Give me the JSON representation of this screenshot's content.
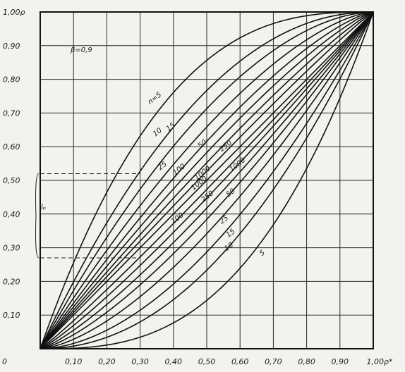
{
  "chart_data": {
    "type": "line",
    "title": "β=0,9",
    "xlabel": "ρ*",
    "ylabel": "ρ",
    "xlim": [
      0,
      1
    ],
    "ylim": [
      0,
      1
    ],
    "grid": true,
    "x_ticks": [
      "0",
      "0,10",
      "0,20",
      "0,30",
      "0,40",
      "0,50",
      "0,60",
      "0,70",
      "0,80",
      "0,90",
      "1,00ρ*"
    ],
    "y_ticks": [
      "0,10",
      "0,20",
      "0,30",
      "0,40",
      "0,50",
      "0,60",
      "0,70",
      "0,80",
      "0,90",
      "1,00ρ"
    ],
    "interval_label": "lₚ",
    "interval_bounds": [
      0.27,
      0.52
    ],
    "series": [
      {
        "name": "n=5",
        "upper_shape": 2.8,
        "lower_shape": 2.8
      },
      {
        "name": "10",
        "upper_shape": 2.1,
        "lower_shape": 2.1
      },
      {
        "name": "15",
        "upper_shape": 1.8,
        "lower_shape": 1.8
      },
      {
        "name": "25",
        "upper_shape": 1.55,
        "lower_shape": 1.55
      },
      {
        "name": "50",
        "upper_shape": 1.38,
        "lower_shape": 1.38
      },
      {
        "name": "100",
        "upper_shape": 1.26,
        "lower_shape": 1.26
      },
      {
        "name": "250",
        "upper_shape": 1.16,
        "lower_shape": 1.16
      },
      {
        "name": "1000",
        "upper_shape": 1.08,
        "lower_shape": 1.08
      }
    ],
    "curve_labels_upper": [
      {
        "text": "n=5",
        "x": 0.33,
        "y": 0.725
      },
      {
        "text": "10",
        "x": 0.345,
        "y": 0.63
      },
      {
        "text": "15",
        "x": 0.385,
        "y": 0.645
      },
      {
        "text": "25",
        "x": 0.36,
        "y": 0.53
      },
      {
        "text": "50",
        "x": 0.48,
        "y": 0.595
      },
      {
        "text": "100",
        "x": 0.405,
        "y": 0.515
      },
      {
        "text": "250",
        "x": 0.545,
        "y": 0.585
      },
      {
        "text": "1000",
        "x": 0.47,
        "y": 0.5
      },
      {
        "text": "1000",
        "x": 0.575,
        "y": 0.525
      }
    ],
    "curve_labels_lower": [
      {
        "text": "5",
        "x": 0.665,
        "y": 0.275
      },
      {
        "text": "10",
        "x": 0.56,
        "y": 0.29
      },
      {
        "text": "15",
        "x": 0.565,
        "y": 0.33
      },
      {
        "text": "25",
        "x": 0.545,
        "y": 0.37
      },
      {
        "text": "50",
        "x": 0.565,
        "y": 0.45
      },
      {
        "text": "100",
        "x": 0.4,
        "y": 0.37
      },
      {
        "text": "250",
        "x": 0.49,
        "y": 0.435
      },
      {
        "text": "1000",
        "x": 0.46,
        "y": 0.47
      }
    ]
  }
}
